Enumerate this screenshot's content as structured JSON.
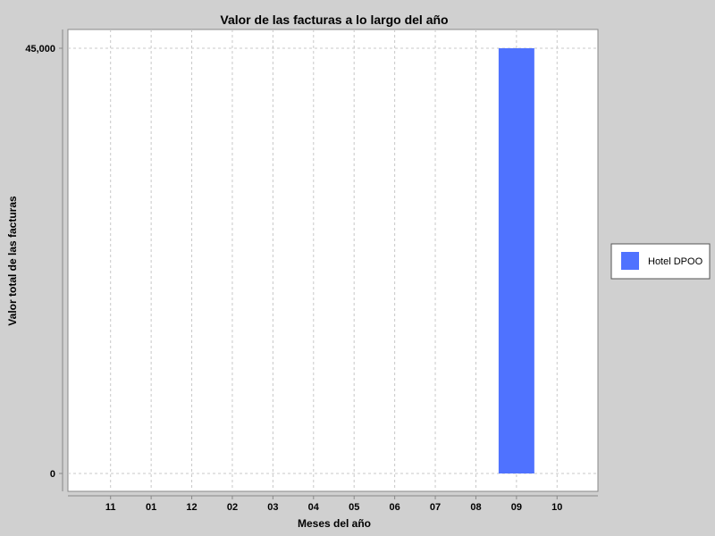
{
  "chart_data": {
    "type": "bar",
    "title": "Valor de las facturas a lo largo del año",
    "xlabel": "Meses del año",
    "ylabel": "Valor total de las facturas",
    "categories": [
      "11",
      "01",
      "12",
      "02",
      "03",
      "04",
      "05",
      "06",
      "07",
      "08",
      "09",
      "10"
    ],
    "y_ticks": [
      0,
      45000
    ],
    "y_tick_labels": [
      "0",
      "45,000"
    ],
    "ylim": [
      0,
      45000
    ],
    "grid": true,
    "legend_position": "right",
    "series": [
      {
        "name": "Hotel DPOO",
        "color": "#4f72ff",
        "values": [
          0,
          0,
          0,
          0,
          0,
          0,
          0,
          0,
          0,
          0,
          45000,
          0
        ]
      }
    ]
  }
}
